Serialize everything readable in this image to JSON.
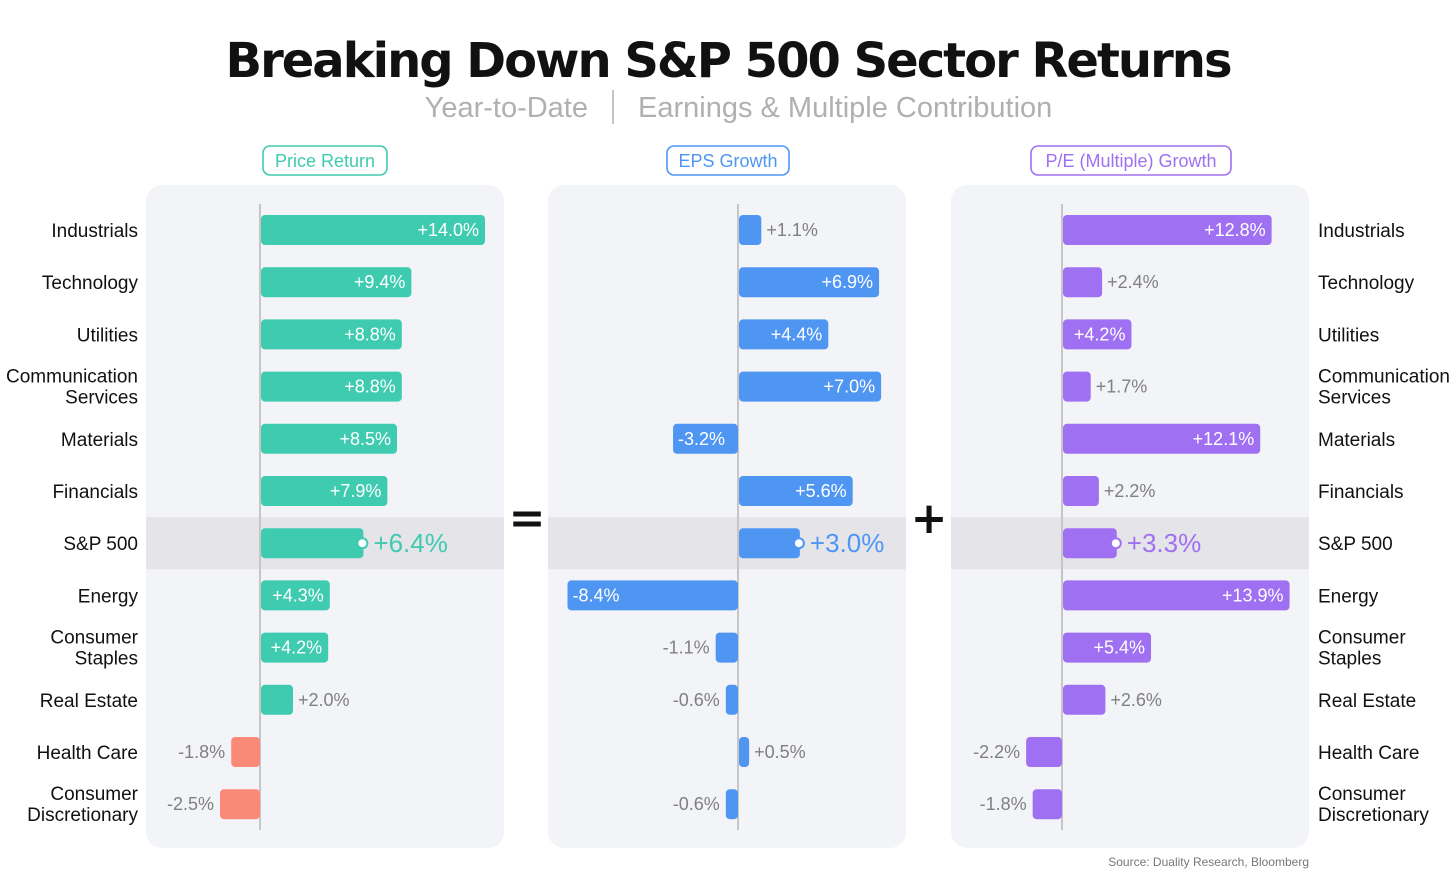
{
  "title": "Breaking Down S&P 500 Sector Returns",
  "subtitle_left": "Year-to-Date",
  "subtitle_right": "Earnings & Multiple Contribution",
  "source": "Source: Duality Research, Bloomberg",
  "operators": [
    "=",
    "+"
  ],
  "colors": {
    "price": "#3ecbb0",
    "eps": "#4f96f3",
    "pe": "#a070f2",
    "negative_price": "#fa8a78",
    "panel_bg": "#f3f4f8",
    "highlight_band": "#e4e4e9",
    "neg_label": "#808080"
  },
  "chart_data": {
    "type": "bar",
    "orientation": "horizontal",
    "highlight_category": "S&P 500",
    "categories": [
      [
        "Industrials"
      ],
      [
        "Technology"
      ],
      [
        "Utilities"
      ],
      [
        "Communication",
        "Services"
      ],
      [
        "Materials"
      ],
      [
        "Financials"
      ],
      [
        "S&P 500"
      ],
      [
        "Energy"
      ],
      [
        "Consumer",
        "Staples"
      ],
      [
        "Real Estate"
      ],
      [
        "Health Care"
      ],
      [
        "Consumer",
        "Discretionary"
      ]
    ],
    "series": [
      {
        "name": "Price Return",
        "color": "#3ecbb0",
        "values": [
          14.0,
          9.4,
          8.8,
          8.8,
          8.5,
          7.9,
          6.4,
          4.3,
          4.2,
          2.0,
          -1.8,
          -2.5
        ],
        "labels": [
          "+14.0%",
          "+9.4%",
          "+8.8%",
          "+8.8%",
          "+8.5%",
          "+7.9%",
          "+6.4%",
          "+4.3%",
          "+4.2%",
          "+2.0%",
          "-1.8%",
          "-2.5%"
        ]
      },
      {
        "name": "EPS Growth",
        "color": "#4f96f3",
        "values": [
          1.1,
          6.9,
          4.4,
          7.0,
          -3.2,
          5.6,
          3.0,
          -8.4,
          -1.1,
          -0.6,
          0.5,
          -0.6
        ],
        "labels": [
          "+1.1%",
          "+6.9%",
          "+4.4%",
          "+7.0%",
          "-3.2%",
          "+5.6%",
          "+3.0%",
          "-8.4%",
          "-1.1%",
          "-0.6%",
          "+0.5%",
          "-0.6%"
        ]
      },
      {
        "name": "P/E (Multiple) Growth",
        "color": "#a070f2",
        "values": [
          12.8,
          2.4,
          4.2,
          1.7,
          12.1,
          2.2,
          3.3,
          13.9,
          5.4,
          2.6,
          -2.2,
          -1.8
        ],
        "labels": [
          "+12.8%",
          "+2.4%",
          "+4.2%",
          "+1.7%",
          "+12.1%",
          "+2.2%",
          "+3.3%",
          "+13.9%",
          "+5.4%",
          "+2.6%",
          "-2.2%",
          "-1.8%"
        ]
      }
    ]
  }
}
